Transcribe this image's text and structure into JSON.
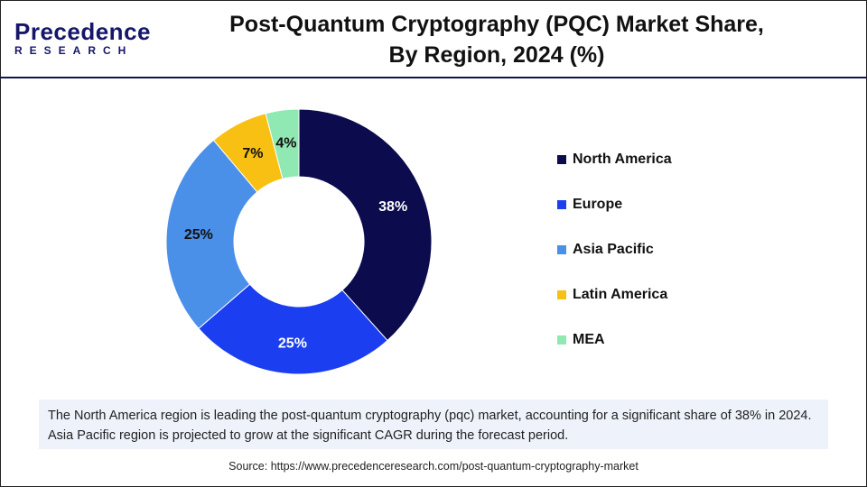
{
  "logo": {
    "line1": "Precedence",
    "line2": "RESEARCH"
  },
  "title": {
    "line1": "Post-Quantum Cryptography (PQC) Market Share,",
    "line2": "By Region, 2024 (%)"
  },
  "chart_data": {
    "type": "donut",
    "title": "Post-Quantum Cryptography (PQC) Market Share, By Region, 2024 (%)",
    "categories": [
      "North America",
      "Europe",
      "Asia Pacific",
      "Latin America",
      "MEA"
    ],
    "values": [
      38,
      25,
      25,
      7,
      4
    ],
    "labels": [
      "38%",
      "25%",
      "25%",
      "7%",
      "4%"
    ],
    "colors": [
      "#0b0b4d",
      "#1b3ff0",
      "#4a8fe8",
      "#f8c012",
      "#90e8b2"
    ],
    "legend_position": "right"
  },
  "note": "The North America region is leading the post-quantum cryptography (pqc) market, accounting for a significant share of 38% in 2024. Asia Pacific region is projected to grow at the significant CAGR during the forecast period.",
  "source": "Source: https://www.precedenceresearch.com/post-quantum-cryptography-market"
}
